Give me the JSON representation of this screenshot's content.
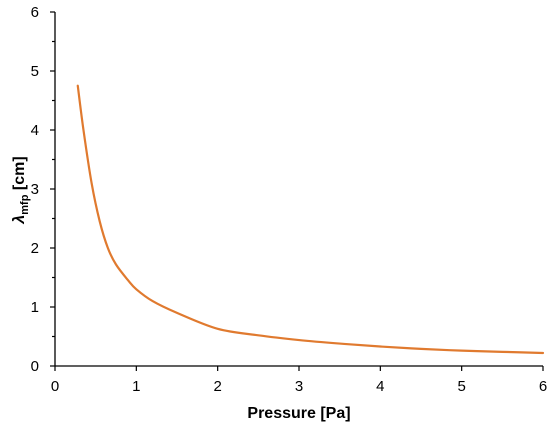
{
  "chart_data": {
    "type": "line",
    "title": "",
    "xlabel": "Pressure [Pa]",
    "ylabel_symbol": "λ",
    "ylabel_subscript": "mfp",
    "ylabel_unit": " [cm]",
    "xlim": [
      0,
      6
    ],
    "ylim": [
      0,
      6
    ],
    "x_ticks": [
      "0",
      "1",
      "2",
      "3",
      "4",
      "5",
      "6"
    ],
    "y_ticks": [
      "0",
      "1",
      "2",
      "3",
      "4",
      "5",
      "6"
    ],
    "grid": false,
    "legend": "none",
    "series": [
      {
        "color": "#E07A2F",
        "x": [
          0.28,
          0.35,
          0.45,
          0.55,
          0.65,
          0.75,
          0.9,
          1.0,
          1.2,
          1.5,
          2.0,
          2.5,
          3.0,
          3.5,
          4.0,
          4.5,
          5.0,
          5.5,
          6.0
        ],
        "y": [
          4.75,
          4.0,
          3.1,
          2.45,
          2.0,
          1.72,
          1.45,
          1.3,
          1.1,
          0.9,
          0.63,
          0.52,
          0.44,
          0.38,
          0.33,
          0.29,
          0.26,
          0.24,
          0.22
        ]
      }
    ]
  }
}
